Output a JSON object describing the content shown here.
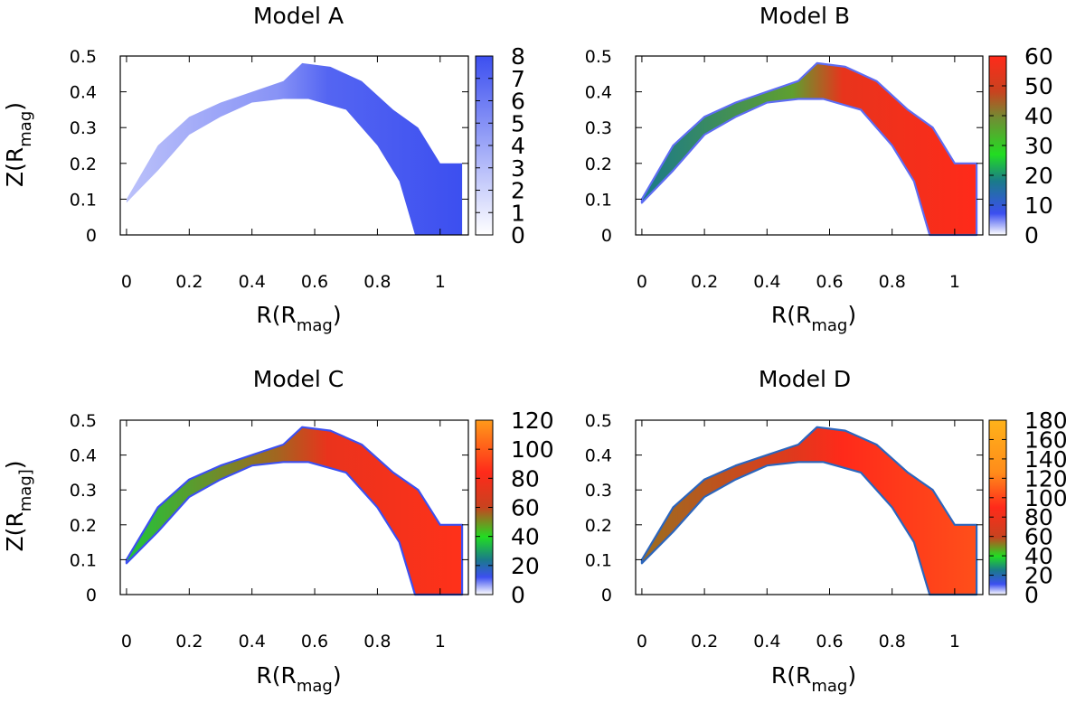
{
  "chart_data": [
    {
      "type": "heatmap",
      "title": "Model A",
      "xlabel": {
        "main": "R(R",
        "sub": "mag",
        "close": ")"
      },
      "ylabel": {
        "main": "Z(R",
        "sub": "mag",
        "close": ")"
      },
      "xlim": [
        -0.02,
        1.09
      ],
      "ylim": [
        0,
        0.5
      ],
      "xticks": [
        "0",
        "0.2",
        "0.4",
        "0.6",
        "0.8",
        "1"
      ],
      "yticks": [
        "0",
        "0.1",
        "0.2",
        "0.3",
        "0.4",
        "0.5"
      ],
      "colorbar": {
        "min": 0,
        "max": 8,
        "ticks": [
          "0",
          "1",
          "2",
          "3",
          "4",
          "5",
          "6",
          "7",
          "8"
        ],
        "stops": [
          [
            0,
            "#ffffff"
          ],
          [
            1,
            "#3c4ff0"
          ]
        ]
      },
      "typical_value": 7,
      "arch_top": [
        [
          0.0,
          0.1
        ],
        [
          0.1,
          0.25
        ],
        [
          0.2,
          0.33
        ],
        [
          0.3,
          0.37
        ],
        [
          0.4,
          0.4
        ],
        [
          0.5,
          0.43
        ],
        [
          0.56,
          0.48
        ],
        [
          0.65,
          0.47
        ],
        [
          0.75,
          0.43
        ],
        [
          0.85,
          0.35
        ],
        [
          0.93,
          0.3
        ],
        [
          1.0,
          0.2
        ],
        [
          1.07,
          0.2
        ]
      ],
      "arch_bottom": [
        [
          0.0,
          0.09
        ],
        [
          0.1,
          0.18
        ],
        [
          0.2,
          0.28
        ],
        [
          0.3,
          0.33
        ],
        [
          0.4,
          0.37
        ],
        [
          0.5,
          0.38
        ],
        [
          0.58,
          0.38
        ],
        [
          0.7,
          0.35
        ],
        [
          0.8,
          0.25
        ],
        [
          0.87,
          0.15
        ],
        [
          0.91,
          0.03
        ],
        [
          0.92,
          0.0
        ]
      ]
    },
    {
      "type": "heatmap",
      "title": "Model B",
      "xlabel": {
        "main": "R(R",
        "sub": "mag",
        "close": ")"
      },
      "ylabel": {
        "main": "",
        "sub": "",
        "close": ""
      },
      "xlim": [
        -0.02,
        1.09
      ],
      "ylim": [
        0,
        0.5
      ],
      "xticks": [
        "0",
        "0.2",
        "0.4",
        "0.6",
        "0.8",
        "1"
      ],
      "yticks": [
        "0",
        "0.1",
        "0.2",
        "0.3",
        "0.4",
        "0.5"
      ],
      "colorbar": {
        "min": 0,
        "max": 60,
        "ticks": [
          "0",
          "10",
          "20",
          "30",
          "40",
          "50",
          "60"
        ],
        "stops": [
          [
            0,
            "#ffffff"
          ],
          [
            0.12,
            "#3c4ff0"
          ],
          [
            0.3,
            "#1a7a8a"
          ],
          [
            0.45,
            "#22dd22"
          ],
          [
            0.65,
            "#6f8f33"
          ],
          [
            0.8,
            "#c8431f"
          ],
          [
            1,
            "#ff2a1a"
          ]
        ]
      },
      "typical_value": 55,
      "arch_top": [
        [
          0.0,
          0.1
        ],
        [
          0.1,
          0.25
        ],
        [
          0.2,
          0.33
        ],
        [
          0.3,
          0.37
        ],
        [
          0.4,
          0.4
        ],
        [
          0.5,
          0.43
        ],
        [
          0.56,
          0.48
        ],
        [
          0.65,
          0.47
        ],
        [
          0.75,
          0.43
        ],
        [
          0.85,
          0.35
        ],
        [
          0.93,
          0.3
        ],
        [
          1.0,
          0.2
        ],
        [
          1.07,
          0.2
        ]
      ],
      "arch_bottom": [
        [
          0.0,
          0.09
        ],
        [
          0.1,
          0.18
        ],
        [
          0.2,
          0.28
        ],
        [
          0.3,
          0.33
        ],
        [
          0.4,
          0.37
        ],
        [
          0.5,
          0.38
        ],
        [
          0.58,
          0.38
        ],
        [
          0.7,
          0.35
        ],
        [
          0.8,
          0.25
        ],
        [
          0.87,
          0.15
        ],
        [
          0.91,
          0.03
        ],
        [
          0.92,
          0.0
        ]
      ]
    },
    {
      "type": "heatmap",
      "title": "Model C",
      "xlabel": {
        "main": "R(R",
        "sub": "mag",
        "close": ")"
      },
      "ylabel": {
        "main": "Z(R",
        "sub": "mag]",
        "close": ")"
      },
      "xlim": [
        -0.02,
        1.09
      ],
      "ylim": [
        0,
        0.5
      ],
      "xticks": [
        "0",
        "0.2",
        "0.4",
        "0.6",
        "0.8",
        "1"
      ],
      "yticks": [
        "0",
        "0.1",
        "0.2",
        "0.3",
        "0.4",
        "0.5"
      ],
      "colorbar": {
        "min": 0,
        "max": 120,
        "ticks": [
          "0",
          "20",
          "40",
          "60",
          "80",
          "100",
          "120"
        ],
        "stops": [
          [
            0,
            "#ffffff"
          ],
          [
            0.1,
            "#3c4ff0"
          ],
          [
            0.2,
            "#1a7a8a"
          ],
          [
            0.33,
            "#22dd22"
          ],
          [
            0.5,
            "#c8431f"
          ],
          [
            0.7,
            "#ff2a1a"
          ],
          [
            1,
            "#ff9a1a"
          ]
        ]
      },
      "typical_value": 75,
      "arch_top": [
        [
          0.0,
          0.1
        ],
        [
          0.1,
          0.25
        ],
        [
          0.2,
          0.33
        ],
        [
          0.3,
          0.37
        ],
        [
          0.4,
          0.4
        ],
        [
          0.5,
          0.43
        ],
        [
          0.56,
          0.48
        ],
        [
          0.65,
          0.47
        ],
        [
          0.75,
          0.43
        ],
        [
          0.85,
          0.35
        ],
        [
          0.93,
          0.3
        ],
        [
          1.0,
          0.2
        ],
        [
          1.07,
          0.2
        ]
      ],
      "arch_bottom": [
        [
          0.0,
          0.09
        ],
        [
          0.1,
          0.18
        ],
        [
          0.2,
          0.28
        ],
        [
          0.3,
          0.33
        ],
        [
          0.4,
          0.37
        ],
        [
          0.5,
          0.38
        ],
        [
          0.58,
          0.38
        ],
        [
          0.7,
          0.35
        ],
        [
          0.8,
          0.25
        ],
        [
          0.87,
          0.15
        ],
        [
          0.91,
          0.03
        ],
        [
          0.92,
          0.0
        ]
      ]
    },
    {
      "type": "heatmap",
      "title": "Model D",
      "xlabel": {
        "main": "R(R",
        "sub": "mag",
        "close": ")"
      },
      "ylabel": {
        "main": "",
        "sub": "",
        "close": ""
      },
      "xlim": [
        -0.02,
        1.09
      ],
      "ylim": [
        0,
        0.5
      ],
      "xticks": [
        "0",
        "0.2",
        "0.4",
        "0.6",
        "0.8",
        "1"
      ],
      "yticks": [
        "0",
        "0.1",
        "0.2",
        "0.3",
        "0.4",
        "0.5"
      ],
      "colorbar": {
        "min": 0,
        "max": 180,
        "ticks": [
          "0",
          "20",
          "40",
          "60",
          "80",
          "100",
          "120",
          "140",
          "160",
          "180"
        ],
        "stops": [
          [
            0,
            "#ffffff"
          ],
          [
            0.06,
            "#3c4ff0"
          ],
          [
            0.14,
            "#1a7a8a"
          ],
          [
            0.22,
            "#22dd22"
          ],
          [
            0.33,
            "#c8431f"
          ],
          [
            0.5,
            "#ff2a1a"
          ],
          [
            0.7,
            "#ff8c1a"
          ],
          [
            1,
            "#ffb21a"
          ]
        ]
      },
      "typical_value": 90,
      "arch_top": [
        [
          0.0,
          0.1
        ],
        [
          0.1,
          0.25
        ],
        [
          0.2,
          0.33
        ],
        [
          0.3,
          0.37
        ],
        [
          0.4,
          0.4
        ],
        [
          0.5,
          0.43
        ],
        [
          0.56,
          0.48
        ],
        [
          0.65,
          0.47
        ],
        [
          0.75,
          0.43
        ],
        [
          0.85,
          0.35
        ],
        [
          0.93,
          0.3
        ],
        [
          1.0,
          0.2
        ],
        [
          1.07,
          0.2
        ]
      ],
      "arch_bottom": [
        [
          0.0,
          0.09
        ],
        [
          0.1,
          0.18
        ],
        [
          0.2,
          0.28
        ],
        [
          0.3,
          0.33
        ],
        [
          0.4,
          0.37
        ],
        [
          0.5,
          0.38
        ],
        [
          0.58,
          0.38
        ],
        [
          0.7,
          0.35
        ],
        [
          0.8,
          0.25
        ],
        [
          0.87,
          0.15
        ],
        [
          0.91,
          0.03
        ],
        [
          0.92,
          0.0
        ]
      ]
    }
  ]
}
